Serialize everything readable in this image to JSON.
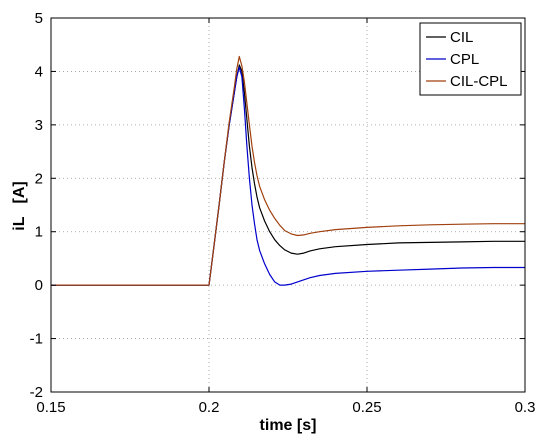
{
  "chart_data": {
    "type": "line",
    "title": "",
    "xlabel": "time [s]",
    "ylabel": "iL   [A]",
    "xlim": [
      0.15,
      0.3
    ],
    "ylim": [
      -2,
      5
    ],
    "xticks": [
      0.15,
      0.2,
      0.25,
      0.3
    ],
    "xtick_labels": [
      "0.15",
      "0.2",
      "0.25",
      "0.3"
    ],
    "yticks": [
      -2,
      -1,
      0,
      1,
      2,
      3,
      4,
      5
    ],
    "ytick_labels": [
      "-2",
      "-1",
      "0",
      "1",
      "2",
      "3",
      "4",
      "5"
    ],
    "grid": true,
    "legend_position": "top-right",
    "series": [
      {
        "name": "CIL",
        "color": "#000000",
        "x": [
          0.15,
          0.2,
          0.2016,
          0.2032,
          0.2048,
          0.2064,
          0.208,
          0.2088,
          0.2096,
          0.2104,
          0.2112,
          0.212,
          0.2128,
          0.2136,
          0.2144,
          0.2152,
          0.216,
          0.2176,
          0.2192,
          0.2208,
          0.2224,
          0.224,
          0.226,
          0.228,
          0.23,
          0.232,
          0.235,
          0.24,
          0.25,
          0.26,
          0.27,
          0.28,
          0.29,
          0.3
        ],
        "y": [
          0,
          0,
          0.75,
          1.5,
          2.3,
          3.0,
          3.6,
          3.9,
          4.12,
          4.0,
          3.6,
          3.1,
          2.6,
          2.2,
          1.9,
          1.65,
          1.45,
          1.2,
          1.0,
          0.85,
          0.74,
          0.66,
          0.6,
          0.58,
          0.6,
          0.64,
          0.68,
          0.72,
          0.76,
          0.79,
          0.8,
          0.81,
          0.82,
          0.82
        ]
      },
      {
        "name": "CPL",
        "color": "#0000cc",
        "x": [
          0.15,
          0.2,
          0.2016,
          0.2032,
          0.2048,
          0.2064,
          0.208,
          0.2088,
          0.2096,
          0.2104,
          0.2112,
          0.212,
          0.2128,
          0.2136,
          0.2144,
          0.2152,
          0.216,
          0.2176,
          0.2192,
          0.2208,
          0.2224,
          0.224,
          0.226,
          0.228,
          0.23,
          0.232,
          0.235,
          0.24,
          0.25,
          0.26,
          0.27,
          0.28,
          0.29,
          0.3
        ],
        "y": [
          0,
          0,
          0.75,
          1.5,
          2.3,
          3.0,
          3.6,
          3.9,
          4.08,
          3.9,
          3.3,
          2.6,
          2.0,
          1.5,
          1.15,
          0.85,
          0.65,
          0.4,
          0.2,
          0.06,
          0.0,
          0.0,
          0.02,
          0.06,
          0.1,
          0.14,
          0.18,
          0.22,
          0.26,
          0.28,
          0.3,
          0.32,
          0.33,
          0.33
        ]
      },
      {
        "name": "CIL-CPL",
        "color": "#a0400e",
        "x": [
          0.15,
          0.2,
          0.2016,
          0.2032,
          0.2048,
          0.2064,
          0.208,
          0.2088,
          0.2096,
          0.2104,
          0.2112,
          0.212,
          0.2128,
          0.2136,
          0.2144,
          0.2152,
          0.216,
          0.2176,
          0.2192,
          0.2208,
          0.2224,
          0.224,
          0.226,
          0.228,
          0.23,
          0.232,
          0.235,
          0.24,
          0.25,
          0.26,
          0.27,
          0.28,
          0.29,
          0.3
        ],
        "y": [
          0,
          0,
          0.75,
          1.5,
          2.3,
          3.05,
          3.7,
          4.05,
          4.28,
          4.1,
          3.8,
          3.4,
          3.0,
          2.6,
          2.3,
          2.05,
          1.85,
          1.6,
          1.4,
          1.25,
          1.12,
          1.02,
          0.96,
          0.93,
          0.94,
          0.97,
          1.0,
          1.04,
          1.08,
          1.11,
          1.13,
          1.14,
          1.15,
          1.15
        ]
      }
    ]
  }
}
